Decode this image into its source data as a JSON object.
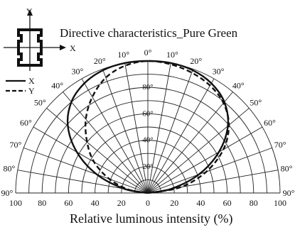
{
  "chart_data": {
    "type": "line",
    "subtype": "polar-half",
    "title": "Directive characteristics_Pure Green",
    "xlabel": "Relative luminous intensity  (%)",
    "radial_ticks": [
      "100",
      "80",
      "60",
      "40",
      "20",
      "0",
      "20",
      "40",
      "60",
      "80",
      "100"
    ],
    "inner_ticks": [
      "20",
      "40",
      "60",
      "80"
    ],
    "angle_labels_left": [
      "90",
      "80",
      "70",
      "60",
      "50",
      "40",
      "30",
      "20",
      "10",
      "0"
    ],
    "angle_labels_right": [
      "10",
      "20",
      "30",
      "40",
      "50",
      "60",
      "70",
      "80",
      "90"
    ],
    "angle_unit": "°",
    "angle_range": [
      -90,
      90
    ],
    "radius_range": [
      0,
      100
    ],
    "grid": true,
    "legend_position": "top-left",
    "icon": {
      "name": "led-package-icon",
      "axis_labels": {
        "vertical": "Y",
        "horizontal": "X"
      }
    },
    "series": [
      {
        "name": "X",
        "style": "solid",
        "angles": [
          -90,
          -80,
          -70,
          -60,
          -50,
          -40,
          -30,
          -20,
          -10,
          0,
          10,
          20,
          30,
          40,
          50,
          60,
          70,
          80,
          90
        ],
        "values": [
          0,
          18,
          41,
          62,
          79,
          90,
          96,
          99,
          100,
          100,
          100,
          99,
          96,
          90,
          79,
          62,
          41,
          18,
          0
        ]
      },
      {
        "name": "Y",
        "style": "dashed",
        "angles": [
          -90,
          -80,
          -70,
          -60,
          -50,
          -40,
          -30,
          -20,
          -10,
          0,
          10,
          20,
          30,
          40,
          50,
          60,
          70,
          80,
          90
        ],
        "values": [
          0,
          15,
          31,
          47,
          60,
          73,
          84,
          93,
          98,
          100,
          99,
          97,
          94,
          89,
          80,
          66,
          47,
          25,
          0
        ]
      }
    ]
  }
}
